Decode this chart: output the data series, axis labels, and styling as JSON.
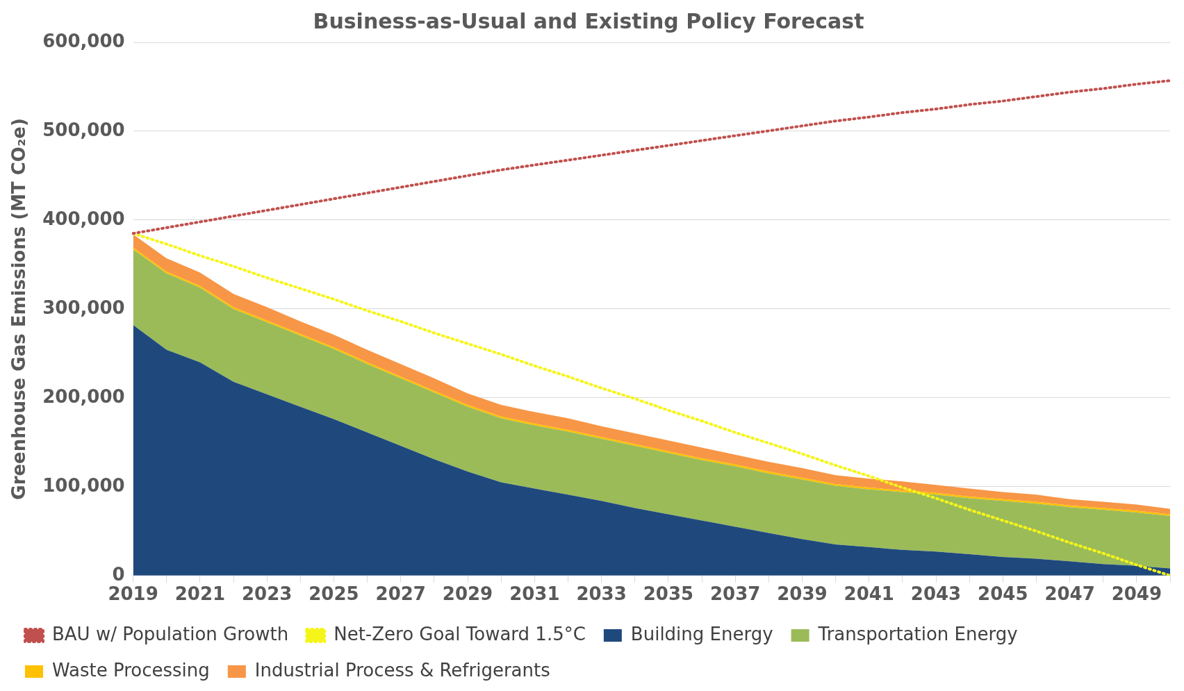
{
  "chart_data": {
    "type": "area",
    "title": "Business-as-Usual and Existing Policy Forecast",
    "ylabel": "Greenhouse Gas Emissions (MT CO₂e)",
    "categories": [
      "2019",
      null,
      "2021",
      null,
      "2023",
      null,
      "2025",
      null,
      "2027",
      null,
      "2029",
      null,
      "2031",
      null,
      "2033",
      null,
      "2035",
      null,
      "2037",
      null,
      "2039",
      null,
      "2041",
      null,
      "2043",
      null,
      "2045",
      null,
      "2047",
      null,
      "2049",
      null
    ],
    "stacked": true,
    "grid": "y",
    "legend": "bottom",
    "marker": "none",
    "ylim": [
      0,
      600000
    ],
    "yticks": [
      {
        "value": 0,
        "label": "0"
      },
      {
        "value": 100000,
        "label": "100,000"
      },
      {
        "value": 200000,
        "label": "200,000"
      },
      {
        "value": 300000,
        "label": "300,000"
      },
      {
        "value": 400000,
        "label": "400,000"
      },
      {
        "value": 500000,
        "label": "500,000"
      },
      {
        "value": 600000,
        "label": "600,000"
      }
    ],
    "series": [
      {
        "name": "Building Energy",
        "color": "#1f497d",
        "values": [
          282000,
          254000,
          240000,
          218000,
          204000,
          190000,
          176000,
          161000,
          146000,
          131000,
          117000,
          105000,
          98000,
          91000,
          84000,
          76000,
          69000,
          62000,
          55000,
          48000,
          41000,
          35000,
          32000,
          29000,
          27000,
          24000,
          21000,
          19000,
          16000,
          13000,
          11000,
          8000
        ]
      },
      {
        "name": "Transportation Energy",
        "color": "#9bbb59",
        "values": [
          85000,
          86000,
          84000,
          82000,
          81000,
          80000,
          79000,
          77000,
          76000,
          75000,
          73000,
          72000,
          71000,
          71000,
          70000,
          70000,
          69000,
          68000,
          68000,
          67000,
          67000,
          66000,
          65000,
          65000,
          64000,
          63000,
          63000,
          62000,
          61000,
          61000,
          60000,
          59000
        ]
      },
      {
        "name": "Waste Processing",
        "color": "#ffc000",
        "values": [
          2000,
          2000,
          2000,
          2000,
          2000,
          2000,
          2000,
          2000,
          2000,
          2000,
          2000,
          2000,
          2000,
          2000,
          2000,
          2000,
          2000,
          2000,
          2000,
          2000,
          2000,
          2000,
          2000,
          2000,
          2000,
          2000,
          2000,
          2000,
          2000,
          2000,
          2000,
          2000
        ]
      },
      {
        "name": "Industrial Process & Refrigerants",
        "color": "#f79646",
        "values": [
          15000,
          15000,
          15000,
          15000,
          15000,
          14000,
          14000,
          14000,
          14000,
          14000,
          13000,
          13000,
          13000,
          13000,
          12000,
          12000,
          12000,
          12000,
          11000,
          11000,
          11000,
          10000,
          10000,
          10000,
          9000,
          9000,
          8000,
          8000,
          7000,
          7000,
          7000,
          6000
        ]
      },
      {
        "name": "BAU w/ Population Growth",
        "type": "line",
        "line_style": "dotted",
        "color": "#c0504d",
        "values": [
          385000,
          391500,
          398000,
          404500,
          411000,
          417500,
          424000,
          430500,
          437000,
          443500,
          450000,
          456500,
          462000,
          467500,
          473000,
          478500,
          484000,
          489500,
          495000,
          500500,
          506000,
          511500,
          516000,
          521000,
          525000,
          530000,
          534000,
          539000,
          544000,
          548000,
          553000,
          557000
        ]
      },
      {
        "name": "Net-Zero Goal Toward 1.5°C",
        "type": "line",
        "line_style": "dotted",
        "color": "#f5f51a",
        "values": [
          385000,
          373000,
          360000,
          348000,
          335000,
          323000,
          311000,
          298000,
          286000,
          273000,
          261000,
          249000,
          236000,
          224000,
          211000,
          199000,
          186000,
          174000,
          161000,
          149000,
          137000,
          124000,
          112000,
          99000,
          87000,
          74000,
          62000,
          50000,
          37000,
          25000,
          12000,
          0
        ]
      }
    ]
  }
}
